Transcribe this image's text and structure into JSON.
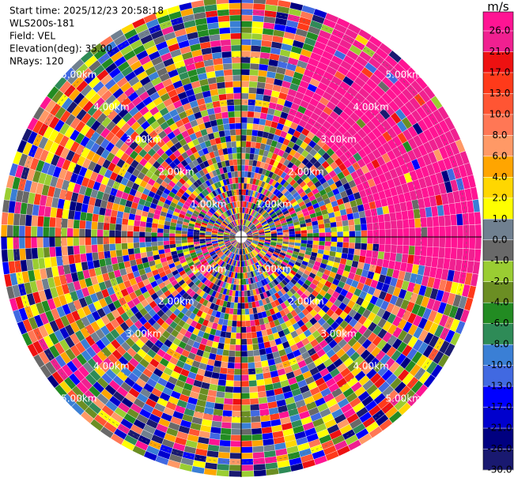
{
  "chart_data": {
    "type": "ppi",
    "header": [
      "Start time: 2025/12/23 20:58:18",
      "WLS200s-181",
      "Field: VEL",
      "Elevation(deg): 35.00",
      "NRays: 120"
    ],
    "range_rings": [
      {
        "value": 1,
        "label": "1.00km"
      },
      {
        "value": 2,
        "label": "2.00km"
      },
      {
        "value": 3,
        "label": "3.00km"
      },
      {
        "value": 4,
        "label": "4.00km"
      },
      {
        "value": 5,
        "label": "5.00km"
      }
    ],
    "colorbar_label": "m/s",
    "colorbar_ticks": [
      {
        "value": 26,
        "label": "26.0"
      },
      {
        "value": 21,
        "label": "21.0"
      },
      {
        "value": 17,
        "label": "17.0"
      },
      {
        "value": 13,
        "label": "13.0"
      },
      {
        "value": 10,
        "label": "10.0"
      },
      {
        "value": 8,
        "label": "8.0"
      },
      {
        "value": 6,
        "label": "6.0"
      },
      {
        "value": 4,
        "label": "4.0"
      },
      {
        "value": 2,
        "label": "2.0"
      },
      {
        "value": 1,
        "label": "1.0"
      },
      {
        "value": 0,
        "label": "0.0"
      },
      {
        "value": -1,
        "label": "-1.0"
      },
      {
        "value": -2,
        "label": "-2.0"
      },
      {
        "value": -4,
        "label": "-4.0"
      },
      {
        "value": -6,
        "label": "-6.0"
      },
      {
        "value": -8,
        "label": "-8.0"
      },
      {
        "value": -10,
        "label": "-10.0"
      },
      {
        "value": -13,
        "label": "-13.0"
      },
      {
        "value": -17,
        "label": "-17.0"
      },
      {
        "value": -21,
        "label": "-21.0"
      },
      {
        "value": -26,
        "label": "-26.0"
      },
      {
        "value": -30,
        "label": "-30.0"
      }
    ],
    "colors": [
      "#ff1493",
      "#f02090",
      "#ee1111",
      "#ff3a1a",
      "#ff5533",
      "#ff7755",
      "#ff9966",
      "#ffa500",
      "#ffd700",
      "#ffff00",
      "#708090",
      "#696969",
      "#9acd32",
      "#6b8e23",
      "#228b22",
      "#2e8b57",
      "#3a7fd5",
      "#4169e1",
      "#0000ff",
      "#0000cd",
      "#000080",
      "#191970"
    ]
  }
}
